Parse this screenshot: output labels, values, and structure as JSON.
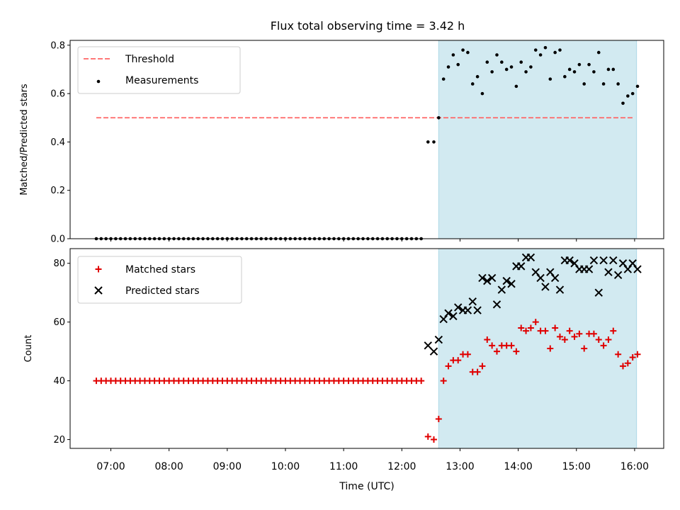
{
  "title": "Flux total observing time = 3.42 h",
  "colors": {
    "threshold": "#ff6666",
    "measurement": "#000000",
    "matched": "#e00000",
    "predicted": "#000000",
    "shade": "#add8e6"
  },
  "chart_data": [
    {
      "type": "scatter",
      "ylabel": "Matched/Predicted stars",
      "ylim": [
        0,
        0.82
      ],
      "yticks": [
        "0.0",
        "0.2",
        "0.4",
        "0.6",
        "0.8"
      ],
      "legend": {
        "position": "top-left",
        "entries": [
          "Threshold",
          "Measurements"
        ]
      },
      "threshold": {
        "name": "Threshold",
        "value": 0.5,
        "from": "06:45",
        "to": "16:00"
      },
      "shaded_interval": [
        "12:38",
        "16:02"
      ],
      "series": [
        {
          "name": "Measurements",
          "zero_run": {
            "from": "06:45",
            "to": "12:22",
            "step_minutes": 5,
            "value": 0
          },
          "points": [
            [
              "12:27",
              0.4
            ],
            [
              "12:33",
              0.4
            ],
            [
              "12:38",
              0.5
            ],
            [
              "12:43",
              0.66
            ],
            [
              "12:48",
              0.71
            ],
            [
              "12:53",
              0.76
            ],
            [
              "12:58",
              0.72
            ],
            [
              "13:03",
              0.78
            ],
            [
              "13:08",
              0.77
            ],
            [
              "13:13",
              0.64
            ],
            [
              "13:18",
              0.67
            ],
            [
              "13:23",
              0.6
            ],
            [
              "13:28",
              0.73
            ],
            [
              "13:33",
              0.69
            ],
            [
              "13:38",
              0.76
            ],
            [
              "13:43",
              0.73
            ],
            [
              "13:48",
              0.7
            ],
            [
              "13:53",
              0.71
            ],
            [
              "13:58",
              0.63
            ],
            [
              "14:03",
              0.73
            ],
            [
              "14:08",
              0.69
            ],
            [
              "14:13",
              0.71
            ],
            [
              "14:18",
              0.78
            ],
            [
              "14:23",
              0.76
            ],
            [
              "14:28",
              0.79
            ],
            [
              "14:33",
              0.66
            ],
            [
              "14:38",
              0.77
            ],
            [
              "14:43",
              0.78
            ],
            [
              "14:48",
              0.67
            ],
            [
              "14:53",
              0.7
            ],
            [
              "14:58",
              0.69
            ],
            [
              "15:03",
              0.72
            ],
            [
              "15:08",
              0.64
            ],
            [
              "15:13",
              0.72
            ],
            [
              "15:18",
              0.69
            ],
            [
              "15:23",
              0.77
            ],
            [
              "15:28",
              0.64
            ],
            [
              "15:33",
              0.7
            ],
            [
              "15:38",
              0.7
            ],
            [
              "15:43",
              0.64
            ],
            [
              "15:48",
              0.56
            ],
            [
              "15:53",
              0.59
            ],
            [
              "15:58",
              0.6
            ],
            [
              "16:03",
              0.63
            ]
          ]
        }
      ]
    },
    {
      "type": "scatter",
      "ylabel": "Count",
      "xlabel": "Time (UTC)",
      "ylim": [
        17,
        85
      ],
      "yticks": [
        "20",
        "40",
        "60",
        "80"
      ],
      "xticks": [
        "07:00",
        "08:00",
        "09:00",
        "10:00",
        "11:00",
        "12:00",
        "13:00",
        "14:00",
        "15:00",
        "16:00"
      ],
      "xlim": [
        "06:18",
        "16:30"
      ],
      "legend": {
        "position": "top-left",
        "entries": [
          "Matched stars",
          "Predicted stars"
        ]
      },
      "shaded_interval": [
        "12:38",
        "16:02"
      ],
      "series": [
        {
          "name": "Matched stars",
          "marker": "plus",
          "constant_run": {
            "from": "06:45",
            "to": "12:22",
            "step_minutes": 5,
            "value": 40
          },
          "points": [
            [
              "12:27",
              21
            ],
            [
              "12:33",
              20
            ],
            [
              "12:38",
              27
            ],
            [
              "12:43",
              40
            ],
            [
              "12:48",
              45
            ],
            [
              "12:53",
              47
            ],
            [
              "12:58",
              47
            ],
            [
              "13:03",
              49
            ],
            [
              "13:08",
              49
            ],
            [
              "13:13",
              43
            ],
            [
              "13:18",
              43
            ],
            [
              "13:23",
              45
            ],
            [
              "13:28",
              54
            ],
            [
              "13:33",
              52
            ],
            [
              "13:38",
              50
            ],
            [
              "13:43",
              52
            ],
            [
              "13:48",
              52
            ],
            [
              "13:53",
              52
            ],
            [
              "13:58",
              50
            ],
            [
              "14:03",
              58
            ],
            [
              "14:08",
              57
            ],
            [
              "14:13",
              58
            ],
            [
              "14:18",
              60
            ],
            [
              "14:23",
              57
            ],
            [
              "14:28",
              57
            ],
            [
              "14:33",
              51
            ],
            [
              "14:38",
              58
            ],
            [
              "14:43",
              55
            ],
            [
              "14:48",
              54
            ],
            [
              "14:53",
              57
            ],
            [
              "14:58",
              55
            ],
            [
              "15:03",
              56
            ],
            [
              "15:08",
              51
            ],
            [
              "15:13",
              56
            ],
            [
              "15:18",
              56
            ],
            [
              "15:23",
              54
            ],
            [
              "15:28",
              52
            ],
            [
              "15:33",
              54
            ],
            [
              "15:38",
              57
            ],
            [
              "15:43",
              49
            ],
            [
              "15:48",
              45
            ],
            [
              "15:53",
              46
            ],
            [
              "15:58",
              48
            ],
            [
              "16:03",
              49
            ]
          ]
        },
        {
          "name": "Predicted stars",
          "marker": "x",
          "points": [
            [
              "12:27",
              52
            ],
            [
              "12:33",
              50
            ],
            [
              "12:38",
              54
            ],
            [
              "12:43",
              61
            ],
            [
              "12:48",
              63
            ],
            [
              "12:53",
              62
            ],
            [
              "12:58",
              65
            ],
            [
              "13:03",
              64
            ],
            [
              "13:08",
              64
            ],
            [
              "13:13",
              67
            ],
            [
              "13:18",
              64
            ],
            [
              "13:23",
              75
            ],
            [
              "13:28",
              74
            ],
            [
              "13:33",
              75
            ],
            [
              "13:38",
              66
            ],
            [
              "13:43",
              71
            ],
            [
              "13:48",
              74
            ],
            [
              "13:53",
              73
            ],
            [
              "13:58",
              79
            ],
            [
              "14:03",
              79
            ],
            [
              "14:08",
              82
            ],
            [
              "14:13",
              82
            ],
            [
              "14:18",
              77
            ],
            [
              "14:23",
              75
            ],
            [
              "14:28",
              72
            ],
            [
              "14:33",
              77
            ],
            [
              "14:38",
              75
            ],
            [
              "14:43",
              71
            ],
            [
              "14:48",
              81
            ],
            [
              "14:53",
              81
            ],
            [
              "14:58",
              80
            ],
            [
              "15:03",
              78
            ],
            [
              "15:08",
              78
            ],
            [
              "15:13",
              78
            ],
            [
              "15:18",
              81
            ],
            [
              "15:23",
              70
            ],
            [
              "15:28",
              81
            ],
            [
              "15:33",
              77
            ],
            [
              "15:38",
              81
            ],
            [
              "15:43",
              76
            ],
            [
              "15:48",
              80
            ],
            [
              "15:53",
              78
            ],
            [
              "15:58",
              80
            ],
            [
              "16:03",
              78
            ]
          ]
        }
      ]
    }
  ]
}
